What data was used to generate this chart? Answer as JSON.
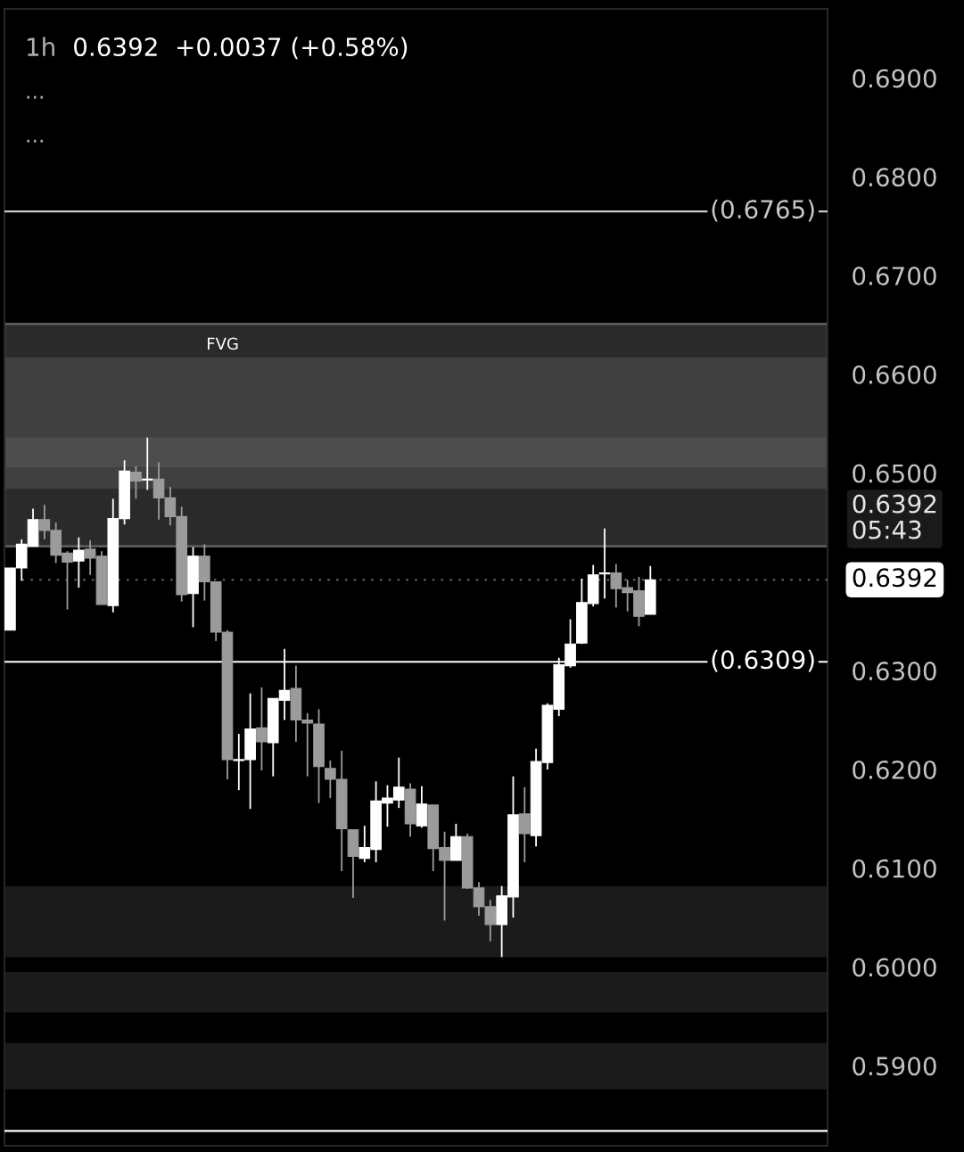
{
  "chart_data": {
    "type": "candlestick",
    "title": "1h",
    "subtitle": "0.6392  +0.0037 (+0.58%)",
    "annotations": [
      "...",
      "...",
      "0.6392\n05:43"
    ],
    "categories": [
      null,
      null,
      null,
      null,
      null,
      null,
      null,
      null,
      null,
      null,
      null,
      null,
      null,
      null,
      null,
      null,
      null,
      null,
      null,
      null,
      null,
      null,
      null,
      null,
      null,
      null,
      null,
      null,
      null,
      null,
      null,
      null,
      null,
      null,
      null,
      null,
      null,
      null,
      null,
      null,
      null,
      null,
      null,
      null,
      null,
      null,
      null,
      null,
      null,
      null,
      null,
      null,
      null,
      null,
      null,
      null,
      null,
      null,
      null,
      null,
      null,
      null,
      null,
      null,
      null,
      null,
      null,
      null,
      null,
      null,
      null,
      null
    ],
    "ohlc": [
      [
        0.6341,
        0.6404,
        0.6341,
        0.6404
      ],
      [
        0.6404,
        0.6433,
        0.6391,
        0.6428
      ],
      [
        0.6426,
        0.6464,
        0.6426,
        0.6453
      ],
      [
        0.6453,
        0.6468,
        0.6433,
        0.6442
      ],
      [
        0.6442,
        0.645,
        0.6409,
        0.6417
      ],
      [
        0.6419,
        0.6421,
        0.6362,
        0.641
      ],
      [
        0.6411,
        0.6435,
        0.6384,
        0.6422
      ],
      [
        0.6423,
        0.6432,
        0.6397,
        0.6414
      ],
      [
        0.6416,
        0.6421,
        0.6367,
        0.6367
      ],
      [
        0.6366,
        0.6474,
        0.6359,
        0.6454
      ],
      [
        0.6454,
        0.6513,
        0.6448,
        0.6502
      ],
      [
        0.6501,
        0.6507,
        0.6474,
        0.6492
      ],
      [
        0.6493,
        0.6536,
        0.6483,
        0.6494
      ],
      [
        0.6494,
        0.6511,
        0.6453,
        0.6475
      ],
      [
        0.6475,
        0.6486,
        0.6447,
        0.6456
      ],
      [
        0.6456,
        0.6466,
        0.637,
        0.6377
      ],
      [
        0.6378,
        0.6425,
        0.6344,
        0.6416
      ],
      [
        0.6416,
        0.6428,
        0.6371,
        0.639
      ],
      [
        0.639,
        0.639,
        0.633,
        0.6339
      ],
      [
        0.6339,
        0.6341,
        0.619,
        0.621
      ],
      [
        0.6209,
        0.6236,
        0.6179,
        0.621
      ],
      [
        0.621,
        0.6277,
        0.616,
        0.6241
      ],
      [
        0.6242,
        0.6283,
        0.6199,
        0.6228
      ],
      [
        0.6227,
        0.6272,
        0.6193,
        0.6272
      ],
      [
        0.627,
        0.6322,
        0.625,
        0.628
      ],
      [
        0.6282,
        0.6305,
        0.6228,
        0.625
      ],
      [
        0.625,
        0.6257,
        0.6193,
        0.6247
      ],
      [
        0.6246,
        0.6261,
        0.6166,
        0.6203
      ],
      [
        0.6201,
        0.6209,
        0.6171,
        0.619
      ],
      [
        0.619,
        0.6219,
        0.6097,
        0.614
      ],
      [
        0.6139,
        0.6139,
        0.607,
        0.6112
      ],
      [
        0.611,
        0.6143,
        0.6106,
        0.6121
      ],
      [
        0.6119,
        0.6188,
        0.6106,
        0.6168
      ],
      [
        0.6166,
        0.6184,
        0.6142,
        0.6171
      ],
      [
        0.6169,
        0.6212,
        0.6161,
        0.6182
      ],
      [
        0.618,
        0.6186,
        0.6132,
        0.6145
      ],
      [
        0.6143,
        0.6183,
        0.6141,
        0.6165
      ],
      [
        0.6164,
        0.6164,
        0.6097,
        0.612
      ],
      [
        0.6121,
        0.6137,
        0.6047,
        0.6108
      ],
      [
        0.6108,
        0.6145,
        0.6108,
        0.6132
      ],
      [
        0.6132,
        0.6135,
        0.6079,
        0.608
      ],
      [
        0.608,
        0.6086,
        0.6052,
        0.6061
      ],
      [
        0.6061,
        0.6068,
        0.6026,
        0.6043
      ],
      [
        0.6043,
        0.6082,
        0.601,
        0.6072
      ],
      [
        0.6071,
        0.6193,
        0.605,
        0.6154
      ],
      [
        0.6155,
        0.6182,
        0.6106,
        0.6135
      ],
      [
        0.6133,
        0.6221,
        0.6122,
        0.6208
      ],
      [
        0.6207,
        0.6267,
        0.62,
        0.6265
      ],
      [
        0.6261,
        0.6313,
        0.6254,
        0.6306
      ],
      [
        0.6305,
        0.6352,
        0.6303,
        0.6327
      ],
      [
        0.6328,
        0.6393,
        0.6327,
        0.6369
      ],
      [
        0.6368,
        0.6407,
        0.6365,
        0.6397
      ],
      [
        0.6398,
        0.6444,
        0.6373,
        0.6399
      ],
      [
        0.6399,
        0.6408,
        0.6364,
        0.6383
      ],
      [
        0.6384,
        0.6392,
        0.636,
        0.6379
      ],
      [
        0.6381,
        0.6395,
        0.6345,
        0.6355
      ],
      [
        0.6357,
        0.6406,
        0.6357,
        0.6392
      ],
      null,
      null,
      null,
      null,
      null,
      null,
      null,
      null,
      null,
      null,
      null,
      null,
      null,
      null,
      null
    ],
    "colors": [
      "#ffffff",
      "#ffffff",
      "#ffffff",
      "#9b9b9b",
      "#9b9b9b",
      "#9b9b9b",
      "#ffffff",
      "#9b9b9b",
      "#9b9b9b",
      "#ffffff",
      "#ffffff",
      "#9b9b9b",
      "#ffffff",
      "#9b9b9b",
      "#9b9b9b",
      "#9b9b9b",
      "#ffffff",
      "#9b9b9b",
      "#9b9b9b",
      "#9b9b9b",
      "#ffffff",
      "#ffffff",
      "#9b9b9b",
      "#ffffff",
      "#ffffff",
      "#9b9b9b",
      "#9b9b9b",
      "#9b9b9b",
      "#9b9b9b",
      "#9b9b9b",
      "#9b9b9b",
      "#ffffff",
      "#ffffff",
      "#ffffff",
      "#ffffff",
      "#9b9b9b",
      "#ffffff",
      "#9b9b9b",
      "#9b9b9b",
      "#ffffff",
      "#9b9b9b",
      "#9b9b9b",
      "#9b9b9b",
      "#ffffff",
      "#ffffff",
      "#9b9b9b",
      "#ffffff",
      "#ffffff",
      "#ffffff",
      "#ffffff",
      "#ffffff",
      "#ffffff",
      "#ffffff",
      "#9b9b9b",
      "#9b9b9b",
      "#9b9b9b",
      "#ffffff",
      null,
      null,
      null,
      null,
      null,
      null,
      null,
      null,
      null,
      null,
      null,
      null,
      null,
      null,
      null
    ],
    "ylim": [
      0.5819,
      0.697
    ],
    "yticks": [
      {
        "value": 0.59,
        "label": "0.5900"
      },
      {
        "value": 0.6,
        "label": "0.6000"
      },
      {
        "value": 0.61,
        "label": "0.6100"
      },
      {
        "value": 0.62,
        "label": "0.6200"
      },
      {
        "value": 0.63,
        "label": "0.6300"
      },
      {
        "value": 0.65,
        "label": "0.6500"
      },
      {
        "value": 0.66,
        "label": "0.6600"
      },
      {
        "value": 0.67,
        "label": "0.6700"
      },
      {
        "value": 0.68,
        "label": "0.6800"
      },
      {
        "value": 0.69,
        "label": "0.6900"
      }
    ],
    "tick_labels": "y",
    "bands": [
      {
        "axis": "y",
        "from": 0.6484,
        "to": 0.6617,
        "color": "#1b1b1b"
      },
      {
        "axis": "y",
        "from": 0.6506,
        "to": 0.6536,
        "color": "#2a2a2a"
      },
      {
        "axis": "y",
        "from": 0.601,
        "to": 0.6082,
        "color": "#1b1b1b"
      },
      {
        "axis": "y",
        "from": 0.5954,
        "to": 0.5995,
        "color": "#1b1b1b"
      },
      {
        "axis": "y",
        "from": 0.5876,
        "to": 0.5923,
        "color": "#1b1b1b"
      },
      {
        "axis": "y",
        "from": 0.6426,
        "to": 0.6651,
        "label": "FVG",
        "color": "#2a2a2a"
      }
    ],
    "ref_lines": [
      {
        "axis": "y",
        "value": 0.6765,
        "label": "(0.6765)",
        "color": "#c8c8c8",
        "line_style": "solid"
      },
      {
        "axis": "y",
        "value": 0.6309,
        "label": "(0.6309)",
        "color": "#ffffff",
        "line_style": "solid"
      },
      {
        "axis": "y",
        "value": 0.6392,
        "label": "0.6392",
        "color": "#6a6a6a",
        "line_style": "dotted"
      },
      {
        "axis": "y",
        "value": 0.5834,
        "color": "#ffffff",
        "line_style": "solid"
      }
    ]
  }
}
